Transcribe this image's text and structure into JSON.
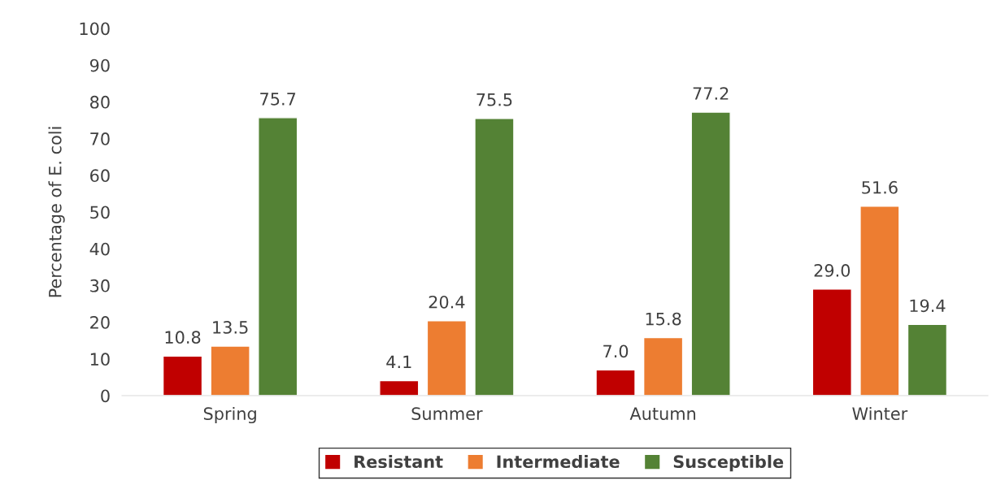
{
  "chart_data": {
    "type": "bar",
    "ylabel": "Percentage of E. coli",
    "categories": [
      "Spring",
      "Summer",
      "Autumn",
      "Winter"
    ],
    "series": [
      {
        "name": "Resistant",
        "color": "#c00000",
        "values": [
          10.8,
          4.1,
          7,
          29
        ],
        "value_labels": [
          "10.8",
          "4.1",
          "7.0",
          "29.0"
        ]
      },
      {
        "name": "Intermediate",
        "color": "#ed7d31",
        "values": [
          13.5,
          20.4,
          15.8,
          51.6
        ]
      },
      {
        "name": "Susceptible",
        "color": "#548235",
        "values": [
          75.7,
          75.5,
          77.2,
          19.4
        ]
      }
    ],
    "ylim": [
      0,
      100
    ],
    "yticks": [
      0,
      10,
      20,
      30,
      40,
      50,
      60,
      70,
      80,
      90,
      100
    ],
    "grid": false,
    "legend": "bottom",
    "data_labels": true
  }
}
